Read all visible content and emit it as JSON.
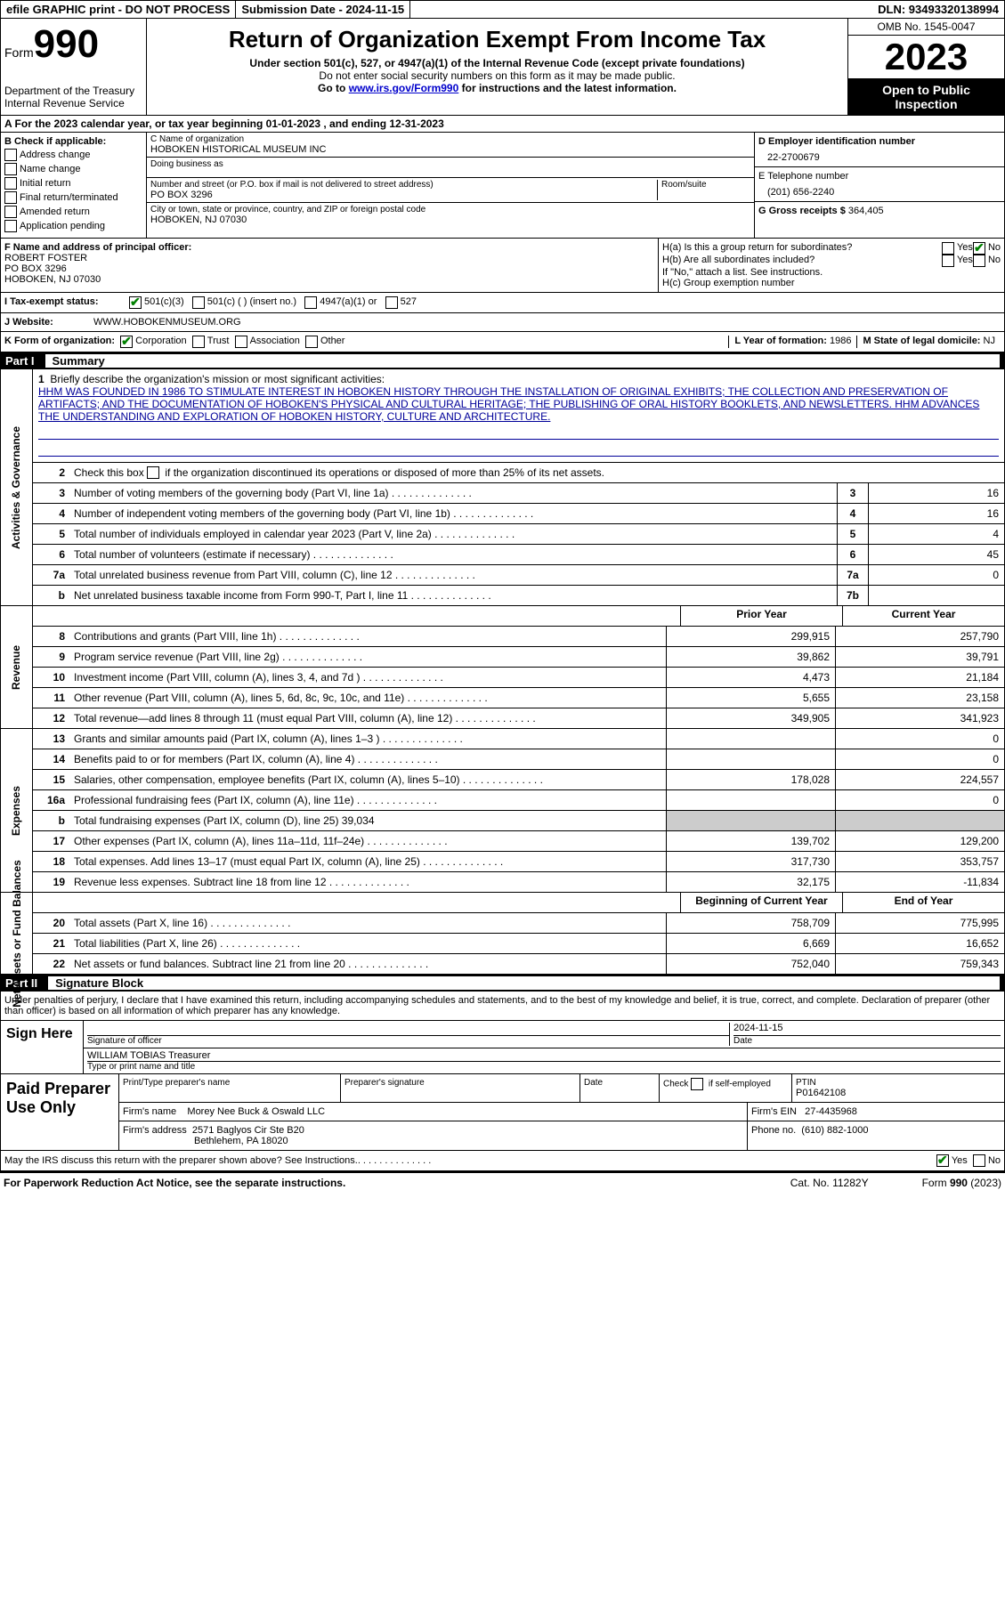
{
  "top_bar": {
    "efile": "efile GRAPHIC print - DO NOT PROCESS",
    "submission": "Submission Date - 2024-11-15",
    "dln": "DLN: 93493320138994"
  },
  "header": {
    "form_word": "Form",
    "form_num": "990",
    "dept": "Department of the Treasury Internal Revenue Service",
    "title": "Return of Organization Exempt From Income Tax",
    "sub": "Under section 501(c), 527, or 4947(a)(1) of the Internal Revenue Code (except private foundations)",
    "sub2": "Do not enter social security numbers on this form as it may be made public.",
    "sub3_pre": "Go to ",
    "sub3_link": "www.irs.gov/Form990",
    "sub3_post": " for instructions and the latest information.",
    "omb": "OMB No. 1545-0047",
    "year": "2023",
    "open_public": "Open to Public Inspection"
  },
  "section_a": {
    "text": "A For the 2023 calendar year, or tax year beginning 01-01-2023    , and ending 12-31-2023"
  },
  "col_b": {
    "header": "B Check if applicable:",
    "items": [
      "Address change",
      "Name change",
      "Initial return",
      "Final return/terminated",
      "Amended return",
      "Application pending"
    ]
  },
  "col_c": {
    "name_lbl": "C Name of organization",
    "name": "HOBOKEN HISTORICAL MUSEUM INC",
    "dba_lbl": "Doing business as",
    "dba": "",
    "addr_lbl": "Number and street (or P.O. box if mail is not delivered to street address)",
    "addr": "PO BOX 3296",
    "room_lbl": "Room/suite",
    "city_lbl": "City or town, state or province, country, and ZIP or foreign postal code",
    "city": "HOBOKEN, NJ  07030"
  },
  "col_d": {
    "ein_lbl": "D Employer identification number",
    "ein": "22-2700679",
    "phone_lbl": "E Telephone number",
    "phone": "(201) 656-2240",
    "receipts_lbl": "G Gross receipts $",
    "receipts": "364,405"
  },
  "row_f": {
    "lbl": "F Name and address of principal officer:",
    "name": "ROBERT FOSTER",
    "addr1": "PO BOX 3296",
    "addr2": "HOBOKEN, NJ  07030"
  },
  "row_h": {
    "ha": "H(a)  Is this a group return for subordinates?",
    "hb": "H(b)  Are all subordinates included?",
    "hb_note": "If \"No,\" attach a list. See instructions.",
    "hc": "H(c)  Group exemption number"
  },
  "status": {
    "lbl": "I   Tax-exempt status:",
    "opt1": "501(c)(3)",
    "opt2": "501(c) (  ) (insert no.)",
    "opt3": "4947(a)(1) or",
    "opt4": "527"
  },
  "website": {
    "lbl": "J   Website:",
    "val": "WWW.HOBOKENMUSEUM.ORG"
  },
  "form_org": {
    "lbl": "K Form of organization:",
    "opt1": "Corporation",
    "opt2": "Trust",
    "opt3": "Association",
    "opt4": "Other",
    "l_lbl": "L Year of formation:",
    "l_val": "1986",
    "m_lbl": "M State of legal domicile:",
    "m_val": "NJ"
  },
  "parts": {
    "p1": "Part I",
    "p1_title": "Summary",
    "p2": "Part II",
    "p2_title": "Signature Block"
  },
  "summary": {
    "mission_lbl": "Briefly describe the organization's mission or most significant activities:",
    "mission": "HHM WAS FOUNDED IN 1986 TO STIMULATE INTEREST IN HOBOKEN HISTORY THROUGH THE INSTALLATION OF ORIGINAL EXHIBITS; THE COLLECTION AND PRESERVATION OF ARTIFACTS; AND THE DOCUMENTATION OF HOBOKEN'S PHYSICAL AND CULTURAL HERITAGE; THE PUBLISHING OF ORAL HISTORY BOOKLETS, AND NEWSLETTERS. HHM ADVANCES THE UNDERSTANDING AND EXPLORATION OF HOBOKEN HISTORY, CULTURE AND ARCHITECTURE.",
    "line2": "Check this box       if the organization discontinued its operations or disposed of more than 25% of its net assets.",
    "vlabels": {
      "gov": "Activities & Governance",
      "rev": "Revenue",
      "exp": "Expenses",
      "net": "Net Assets or Fund Balances"
    },
    "gov_rows": [
      {
        "n": "3",
        "d": "Number of voting members of the governing body (Part VI, line 1a)",
        "c": "3",
        "v": "16"
      },
      {
        "n": "4",
        "d": "Number of independent voting members of the governing body (Part VI, line 1b)",
        "c": "4",
        "v": "16"
      },
      {
        "n": "5",
        "d": "Total number of individuals employed in calendar year 2023 (Part V, line 2a)",
        "c": "5",
        "v": "4"
      },
      {
        "n": "6",
        "d": "Total number of volunteers (estimate if necessary)",
        "c": "6",
        "v": "45"
      },
      {
        "n": "7a",
        "d": "Total unrelated business revenue from Part VIII, column (C), line 12",
        "c": "7a",
        "v": "0"
      },
      {
        "n": "b",
        "d": "Net unrelated business taxable income from Form 990-T, Part I, line 11",
        "c": "7b",
        "v": ""
      }
    ],
    "col_hdrs": {
      "prior": "Prior Year",
      "current": "Current Year",
      "begin": "Beginning of Current Year",
      "end": "End of Year"
    },
    "rev_rows": [
      {
        "n": "8",
        "d": "Contributions and grants (Part VIII, line 1h)",
        "p": "299,915",
        "c": "257,790"
      },
      {
        "n": "9",
        "d": "Program service revenue (Part VIII, line 2g)",
        "p": "39,862",
        "c": "39,791"
      },
      {
        "n": "10",
        "d": "Investment income (Part VIII, column (A), lines 3, 4, and 7d )",
        "p": "4,473",
        "c": "21,184"
      },
      {
        "n": "11",
        "d": "Other revenue (Part VIII, column (A), lines 5, 6d, 8c, 9c, 10c, and 11e)",
        "p": "5,655",
        "c": "23,158"
      },
      {
        "n": "12",
        "d": "Total revenue—add lines 8 through 11 (must equal Part VIII, column (A), line 12)",
        "p": "349,905",
        "c": "341,923"
      }
    ],
    "exp_rows": [
      {
        "n": "13",
        "d": "Grants and similar amounts paid (Part IX, column (A), lines 1–3 )",
        "p": "",
        "c": "0"
      },
      {
        "n": "14",
        "d": "Benefits paid to or for members (Part IX, column (A), line 4)",
        "p": "",
        "c": "0"
      },
      {
        "n": "15",
        "d": "Salaries, other compensation, employee benefits (Part IX, column (A), lines 5–10)",
        "p": "178,028",
        "c": "224,557"
      },
      {
        "n": "16a",
        "d": "Professional fundraising fees (Part IX, column (A), line 11e)",
        "p": "",
        "c": "0"
      },
      {
        "n": "b",
        "d": "Total fundraising expenses (Part IX, column (D), line 25) 39,034",
        "p": "SHADED",
        "c": "SHADED"
      },
      {
        "n": "17",
        "d": "Other expenses (Part IX, column (A), lines 11a–11d, 11f–24e)",
        "p": "139,702",
        "c": "129,200"
      },
      {
        "n": "18",
        "d": "Total expenses. Add lines 13–17 (must equal Part IX, column (A), line 25)",
        "p": "317,730",
        "c": "353,757"
      },
      {
        "n": "19",
        "d": "Revenue less expenses. Subtract line 18 from line 12",
        "p": "32,175",
        "c": "-11,834"
      }
    ],
    "net_rows": [
      {
        "n": "20",
        "d": "Total assets (Part X, line 16)",
        "p": "758,709",
        "c": "775,995"
      },
      {
        "n": "21",
        "d": "Total liabilities (Part X, line 26)",
        "p": "6,669",
        "c": "16,652"
      },
      {
        "n": "22",
        "d": "Net assets or fund balances. Subtract line 21 from line 20",
        "p": "752,040",
        "c": "759,343"
      }
    ]
  },
  "sig": {
    "penalty": "Under penalties of perjury, I declare that I have examined this return, including accompanying schedules and statements, and to the best of my knowledge and belief, it is true, correct, and complete. Declaration of preparer (other than officer) is based on all information of which preparer has any knowledge.",
    "sign_here": "Sign Here",
    "sig_officer_lbl": "Signature of officer",
    "date_lbl": "Date",
    "date_val": "2024-11-15",
    "name_title": "WILLIAM TOBIAS  Treasurer",
    "type_lbl": "Type or print name and title"
  },
  "prep": {
    "lbl": "Paid Preparer Use Only",
    "name_lbl": "Print/Type preparer's name",
    "sig_lbl": "Preparer's signature",
    "date_lbl": "Date",
    "check_lbl": "Check       if self-employed",
    "ptin_lbl": "PTIN",
    "ptin": "P01642108",
    "firm_name_lbl": "Firm's name",
    "firm_name": "Morey Nee Buck & Oswald LLC",
    "firm_ein_lbl": "Firm's EIN",
    "firm_ein": "27-4435968",
    "firm_addr_lbl": "Firm's address",
    "firm_addr1": "2571 Baglyos Cir Ste B20",
    "firm_addr2": "Bethlehem, PA  18020",
    "phone_lbl": "Phone no.",
    "phone": "(610) 882-1000"
  },
  "footer": {
    "discuss": "May the IRS discuss this return with the preparer shown above? See Instructions.",
    "yes": "Yes",
    "no": "No",
    "paperwork": "For Paperwork Reduction Act Notice, see the separate instructions.",
    "cat": "Cat. No. 11282Y",
    "form": "Form 990 (2023)"
  }
}
